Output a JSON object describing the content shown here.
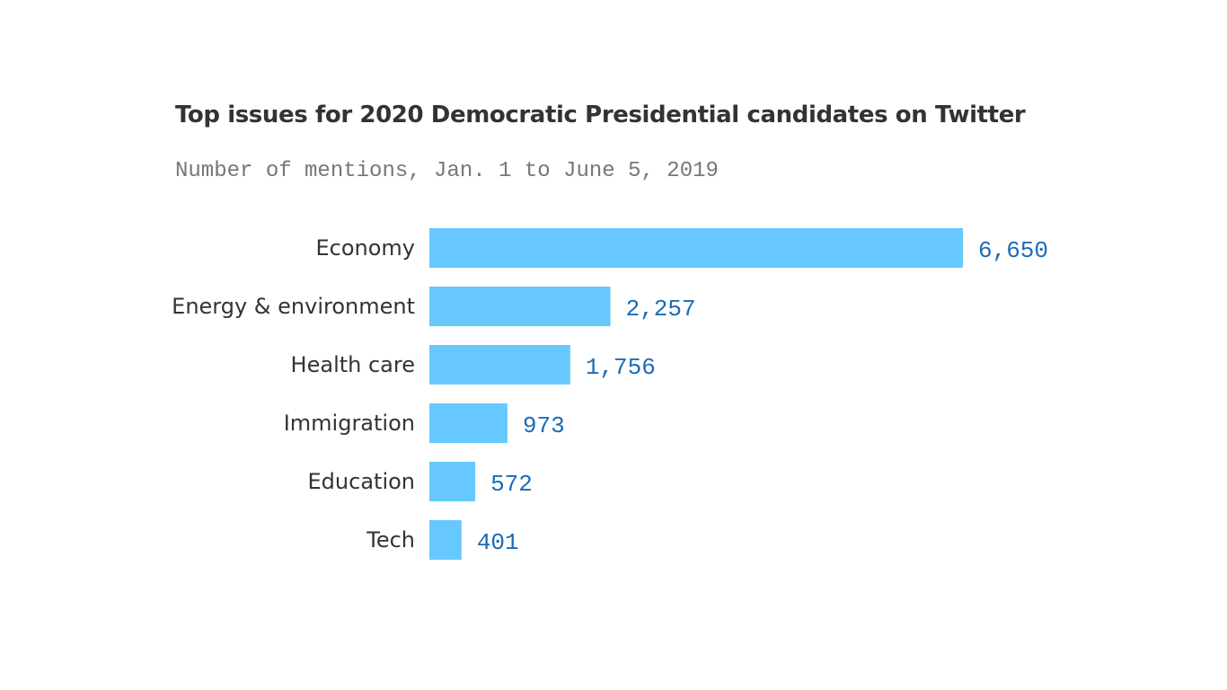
{
  "colors": {
    "bar": "#66c8ff",
    "value_text": "#1b6bb5",
    "category_text": "#333333"
  },
  "chart_data": {
    "type": "bar",
    "orientation": "horizontal",
    "title": "Top issues for 2020 Democratic Presidential candidates on Twitter",
    "subtitle": "Number of mentions, Jan. 1 to June 5, 2019",
    "categories": [
      "Economy",
      "Energy & environment",
      "Health care",
      "Immigration",
      "Education",
      "Tech"
    ],
    "values": [
      6650,
      2257,
      1756,
      973,
      572,
      401
    ],
    "value_labels": [
      "6,650",
      "2,257",
      "1,756",
      "973",
      "572",
      "401"
    ],
    "xlim": [
      0,
      6650
    ],
    "grid": false,
    "legend": "none"
  }
}
